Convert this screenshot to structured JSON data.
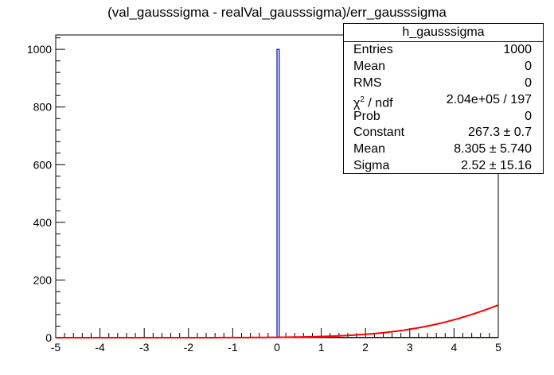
{
  "chart_data": {
    "type": "bar",
    "title": "(val_gausssigma - realVal_gausssigma)/err_gausssigma",
    "xlim": [
      -5,
      5
    ],
    "ylim": [
      0,
      1050
    ],
    "x_ticks": [
      -5,
      -4,
      -3,
      -2,
      -1,
      0,
      1,
      2,
      3,
      4,
      5
    ],
    "y_ticks": [
      0,
      200,
      400,
      600,
      800,
      1000
    ],
    "x_tick_labels": [
      "-5",
      "-4",
      "-3",
      "-2",
      "-1",
      "0",
      "1",
      "2",
      "3",
      "4",
      "5"
    ],
    "y_tick_labels": [
      "0",
      "200",
      "400",
      "600",
      "800",
      "1000"
    ],
    "grid": false,
    "histogram": {
      "bins": [
        {
          "x0": 0.0,
          "x1": 0.05,
          "value": 1000
        }
      ],
      "color": "#000099"
    },
    "fit": {
      "name": "gaus",
      "constant": 267.3,
      "mean": 8.305,
      "sigma": 2.52,
      "color": "#ff0000"
    }
  },
  "stats": {
    "title": "h_gausssigma",
    "rows": [
      {
        "key": "Entries",
        "value": "1000"
      },
      {
        "key": "Mean",
        "value": "0"
      },
      {
        "key": "RMS",
        "value": "0"
      },
      {
        "key": "chi2 / ndf",
        "value": "2.04e+05 / 197"
      },
      {
        "key": "Prob",
        "value": "0"
      },
      {
        "key": "Constant",
        "value": "267.3 ± 0.7"
      },
      {
        "key": "Mean",
        "value": "8.305 ± 5.740"
      },
      {
        "key": "Sigma",
        "value": "2.52 ± 15.16"
      }
    ]
  }
}
